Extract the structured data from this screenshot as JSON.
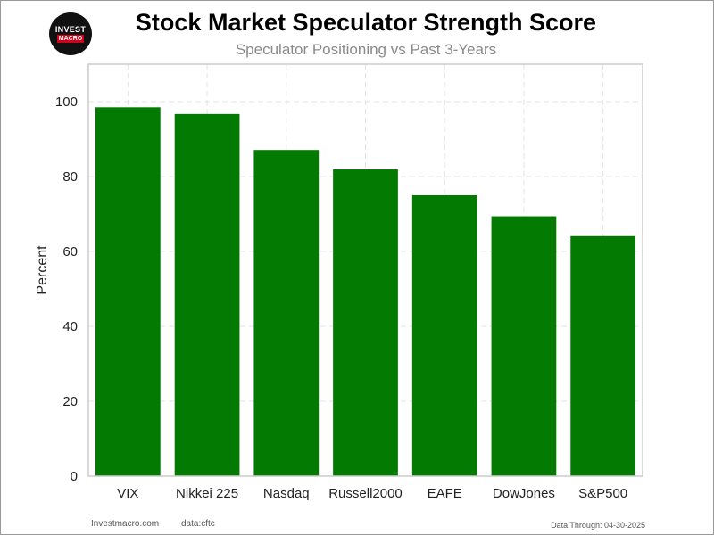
{
  "logo": {
    "line1": "INVEST",
    "line2": "MACRO"
  },
  "header": {
    "title": "Stock Market Speculator Strength Score",
    "subtitle": "Speculator Positioning vs Past 3-Years"
  },
  "footer": {
    "site": "Investmacro.com",
    "source": "data:cftc",
    "data_through": "Data Through: 04-30-2025"
  },
  "colors": {
    "bar": "#037b03",
    "grid": "#e3e3e3",
    "axis": "#cccccc",
    "text": "#222222"
  },
  "chart_data": {
    "type": "bar",
    "title": "Stock Market Speculator Strength Score",
    "subtitle": "Speculator Positioning vs Past 3-Years",
    "xlabel": "",
    "ylabel": "Percent",
    "categories": [
      "VIX",
      "Nikkei 225",
      "Nasdaq",
      "Russell2000",
      "EAFE",
      "DowJones",
      "S&P500"
    ],
    "values": [
      98.5,
      96.7,
      87.1,
      81.9,
      75.0,
      69.4,
      64.1
    ],
    "ylim": [
      0,
      110
    ],
    "yticks": [
      0,
      20,
      40,
      60,
      80,
      100
    ],
    "grid": true,
    "grid_style": "dashed",
    "legend": "none"
  }
}
